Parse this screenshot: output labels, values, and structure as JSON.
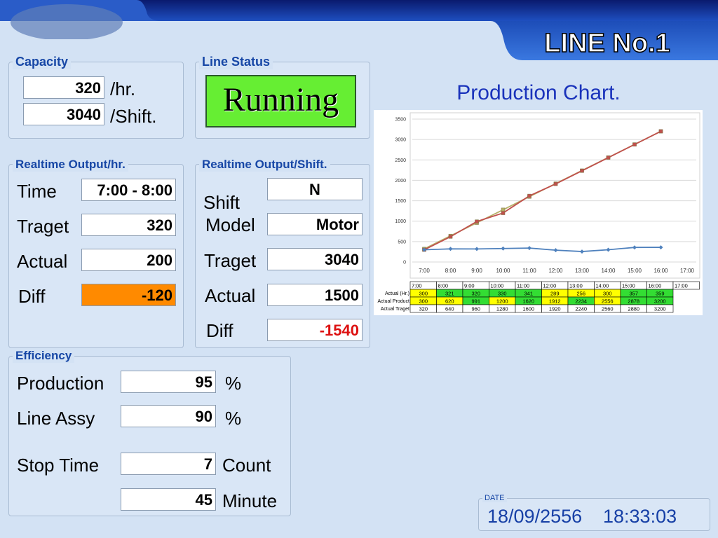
{
  "header": {
    "title": "LINE No.1"
  },
  "capacity": {
    "title": "Capacity",
    "rows": [
      {
        "value": 320,
        "unit": "/hr."
      },
      {
        "value": 3040,
        "unit": "/Shift."
      }
    ]
  },
  "line_status": {
    "title": "Line Status",
    "status": "Running"
  },
  "realtime_hr": {
    "title": "Realtime Output/hr.",
    "rows": [
      {
        "label": "Time",
        "value": "7:00 - 8:00"
      },
      {
        "label": "Traget",
        "value": 320
      },
      {
        "label": "Actual",
        "value": 200
      },
      {
        "label": "Diff",
        "value": -120
      }
    ]
  },
  "realtime_shift": {
    "title": "Realtime Output/Shift.",
    "rows": [
      {
        "label": "Shift",
        "value": "N"
      },
      {
        "label": "Model",
        "value": "Motor"
      },
      {
        "label": "Traget",
        "value": 3040
      },
      {
        "label": "Actual",
        "value": 1500
      },
      {
        "label": "Diff",
        "value": -1540
      }
    ]
  },
  "efficiency": {
    "title": "Efficiency",
    "rows": [
      {
        "label": "Production",
        "value": 95,
        "unit": "%"
      },
      {
        "label": "Line Assy",
        "value": 90,
        "unit": "%"
      },
      {
        "label": "Stop Time",
        "value": 7,
        "unit": "Count"
      },
      {
        "value": 45,
        "unit": "Minute"
      }
    ]
  },
  "date": {
    "label": "DATE",
    "date": "18/09/2556",
    "time": "18:33:03"
  },
  "chart_data": {
    "type": "line",
    "title": "Production Chart.",
    "categories": [
      "7:00",
      "8:00",
      "9:00",
      "10:00",
      "11:00",
      "12:00",
      "13:00",
      "14:00",
      "15:00",
      "16:00",
      "17:00"
    ],
    "ylim": [
      0,
      3500
    ],
    "yticks": [
      0,
      500,
      1000,
      1500,
      2000,
      2500,
      3000,
      3500
    ],
    "grid": true,
    "series": [
      {
        "name": "Actual (Hr.)",
        "color": "#4f81bd",
        "marker": "diamond",
        "values": [
          300,
          321,
          320,
          330,
          341,
          289,
          256,
          300,
          357,
          359,
          null
        ],
        "cell_colors": [
          "#ffff00",
          "#33dd33",
          "#33dd33",
          "#33dd33",
          "#33dd33",
          "#ffff00",
          "#ffff00",
          "#ffff00",
          "#33dd33",
          "#33dd33",
          null
        ]
      },
      {
        "name": "Actual Product",
        "color": "#c0504d",
        "marker": "square",
        "values": [
          300,
          620,
          991,
          1200,
          1620,
          1912,
          2234,
          2556,
          2878,
          3200,
          null
        ],
        "cell_colors": [
          "#ffff00",
          "#ffff00",
          "#33dd33",
          "#ffff00",
          "#33dd33",
          "#ffff00",
          "#33dd33",
          "#ffff00",
          "#33dd33",
          "#33dd33",
          null
        ]
      },
      {
        "name": "Actual Traget",
        "color": "#b5b069",
        "marker": "square",
        "values": [
          320,
          640,
          960,
          1280,
          1600,
          1920,
          2240,
          2560,
          2880,
          3200,
          null
        ]
      }
    ]
  }
}
